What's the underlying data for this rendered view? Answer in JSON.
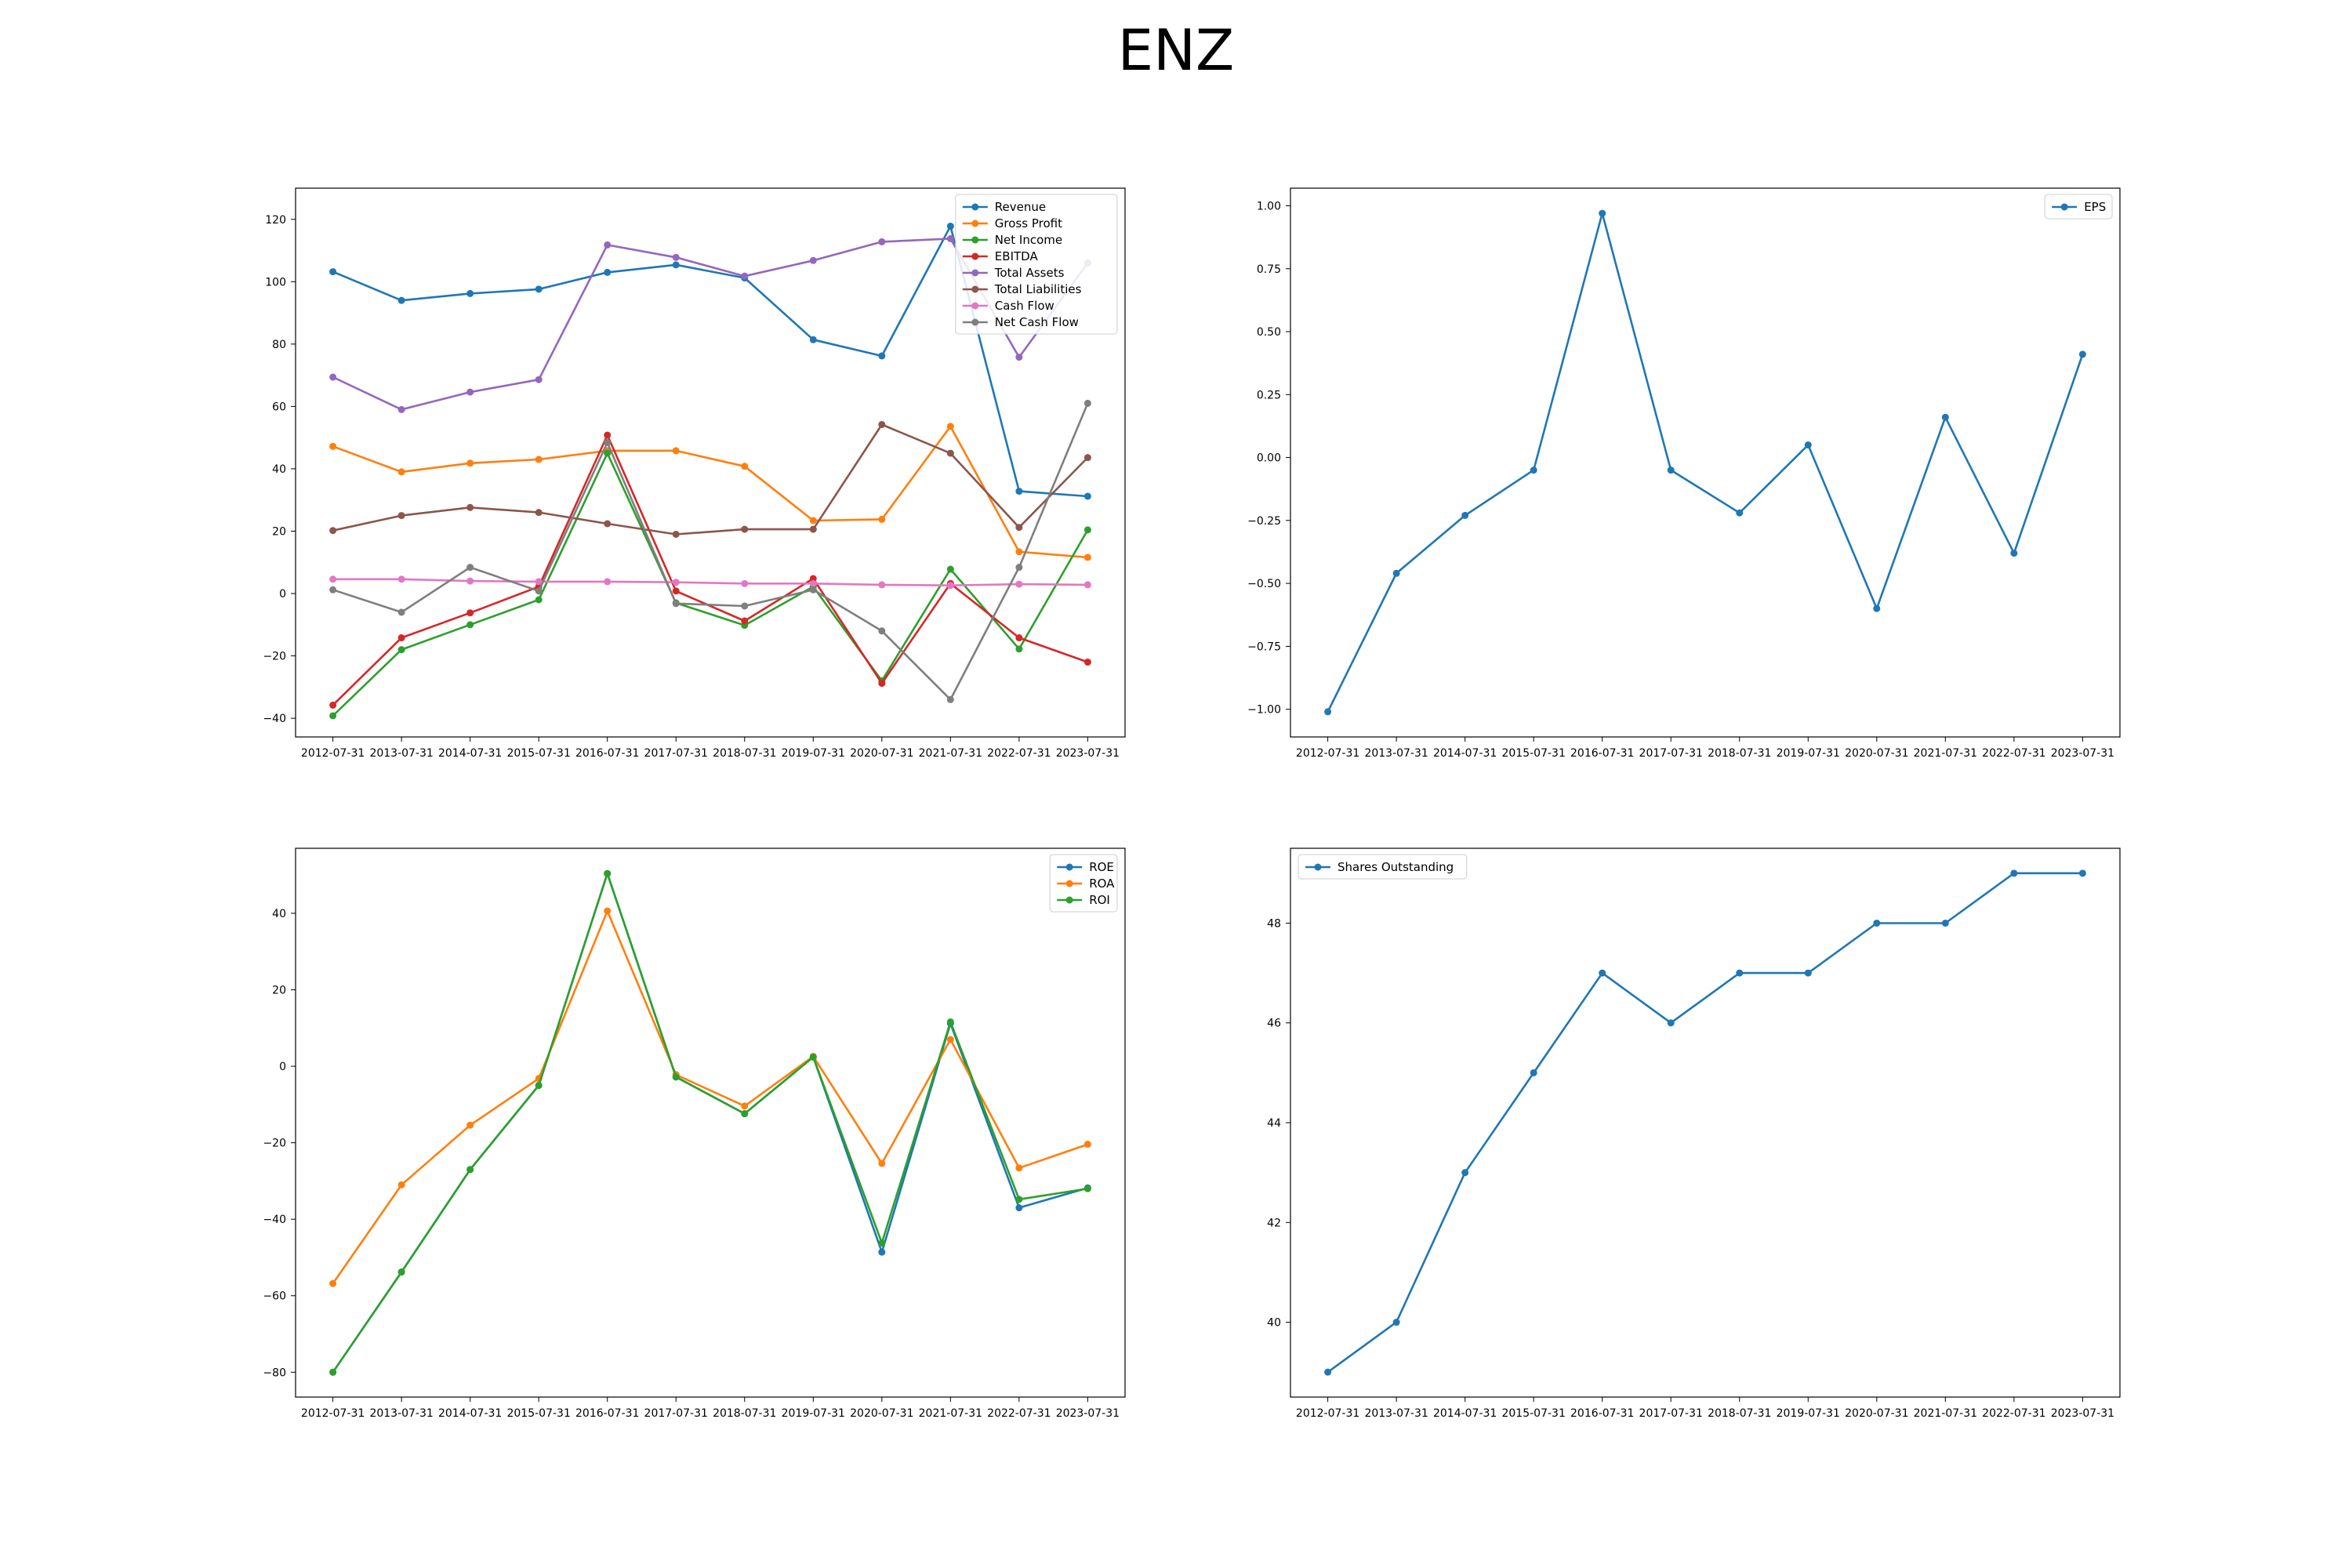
{
  "figure": {
    "title": "ENZ"
  },
  "chart_data": [
    {
      "type": "line",
      "x": [
        "2012-07-31",
        "2013-07-31",
        "2014-07-31",
        "2015-07-31",
        "2016-07-31",
        "2017-07-31",
        "2018-07-31",
        "2019-07-31",
        "2020-07-31",
        "2021-07-31",
        "2022-07-31",
        "2023-07-31"
      ],
      "ylim": [
        -46,
        130
      ],
      "yticks": [
        -40,
        -20,
        0,
        20,
        40,
        60,
        80,
        100,
        120
      ],
      "legend": "top-right",
      "grid": false,
      "series": [
        {
          "name": "Revenue",
          "color": "#1f77b4",
          "values": [
            103.2,
            94.0,
            96.2,
            97.6,
            103.0,
            105.4,
            101.2,
            81.4,
            76.2,
            117.8,
            32.8,
            31.2
          ]
        },
        {
          "name": "Gross Profit",
          "color": "#ff7f0e",
          "values": [
            47.2,
            39.0,
            41.8,
            43.0,
            45.8,
            45.8,
            40.8,
            23.4,
            23.8,
            53.6,
            13.4,
            11.6
          ]
        },
        {
          "name": "Net Income",
          "color": "#2ca02c",
          "values": [
            -39.2,
            -18.0,
            -10.0,
            -2.0,
            45.0,
            -3.0,
            -10.2,
            2.2,
            -28.0,
            7.8,
            -17.8,
            20.4
          ]
        },
        {
          "name": "EBITDA",
          "color": "#d62728",
          "values": [
            -35.8,
            -14.2,
            -6.2,
            2.2,
            50.8,
            0.8,
            -8.8,
            4.8,
            -28.8,
            3.2,
            -14.2,
            -22.0
          ]
        },
        {
          "name": "Total Assets",
          "color": "#9467bd",
          "values": [
            69.4,
            59.0,
            64.6,
            68.6,
            111.8,
            107.8,
            101.8,
            106.8,
            112.8,
            113.8,
            75.8,
            106.0
          ]
        },
        {
          "name": "Total Liabilities",
          "color": "#8c564b",
          "values": [
            20.2,
            25.0,
            27.6,
            26.0,
            22.4,
            19.0,
            20.6,
            20.6,
            54.2,
            45.0,
            21.2,
            43.6
          ]
        },
        {
          "name": "Cash Flow",
          "color": "#e377c2",
          "values": [
            4.6,
            4.6,
            4.0,
            3.8,
            3.8,
            3.6,
            3.2,
            3.2,
            2.8,
            2.6,
            3.0,
            2.8
          ]
        },
        {
          "name": "Net Cash Flow",
          "color": "#7f7f7f",
          "values": [
            1.2,
            -6.0,
            8.4,
            0.8,
            48.4,
            -3.2,
            -4.0,
            1.2,
            -12.0,
            -34.0,
            8.4,
            61.0
          ]
        }
      ]
    },
    {
      "type": "line",
      "x": [
        "2012-07-31",
        "2013-07-31",
        "2014-07-31",
        "2015-07-31",
        "2016-07-31",
        "2017-07-31",
        "2018-07-31",
        "2019-07-31",
        "2020-07-31",
        "2021-07-31",
        "2022-07-31",
        "2023-07-31"
      ],
      "ylim": [
        -1.11,
        1.07
      ],
      "yticks": [
        -1.0,
        -0.75,
        -0.5,
        -0.25,
        0.0,
        0.25,
        0.5,
        0.75,
        1.0
      ],
      "ytick_labels": [
        "−1.00",
        "−0.75",
        "−0.50",
        "−0.25",
        "0.00",
        "0.25",
        "0.50",
        "0.75",
        "1.00"
      ],
      "legend": "top-right",
      "grid": false,
      "series": [
        {
          "name": "EPS",
          "color": "#1f77b4",
          "values": [
            -1.01,
            -0.46,
            -0.23,
            -0.05,
            0.97,
            -0.05,
            -0.22,
            0.05,
            -0.6,
            0.16,
            -0.38,
            0.41
          ]
        }
      ]
    },
    {
      "type": "line",
      "x": [
        "2012-07-31",
        "2013-07-31",
        "2014-07-31",
        "2015-07-31",
        "2016-07-31",
        "2017-07-31",
        "2018-07-31",
        "2019-07-31",
        "2020-07-31",
        "2021-07-31",
        "2022-07-31",
        "2023-07-31"
      ],
      "ylim": [
        -86.5,
        57
      ],
      "yticks": [
        -80,
        -60,
        -40,
        -20,
        0,
        20,
        40
      ],
      "legend": "top-right",
      "grid": false,
      "series": [
        {
          "name": "ROE",
          "color": "#1f77b4",
          "values": [
            -80.0,
            -53.8,
            -27.0,
            -5.0,
            50.4,
            -2.8,
            -12.4,
            2.4,
            -48.6,
            11.2,
            -37.0,
            -31.8
          ]
        },
        {
          "name": "ROA",
          "color": "#ff7f0e",
          "values": [
            -56.8,
            -31.0,
            -15.4,
            -3.2,
            40.6,
            -2.2,
            -10.4,
            2.6,
            -25.4,
            7.0,
            -26.6,
            -20.4
          ]
        },
        {
          "name": "ROI",
          "color": "#2ca02c",
          "values": [
            -80.0,
            -53.8,
            -27.0,
            -5.0,
            50.4,
            -2.8,
            -12.4,
            2.4,
            -46.2,
            11.6,
            -34.8,
            -32.0
          ]
        }
      ]
    },
    {
      "type": "line",
      "x": [
        "2012-07-31",
        "2013-07-31",
        "2014-07-31",
        "2015-07-31",
        "2016-07-31",
        "2017-07-31",
        "2018-07-31",
        "2019-07-31",
        "2020-07-31",
        "2021-07-31",
        "2022-07-31",
        "2023-07-31"
      ],
      "ylim": [
        38.5,
        49.5
      ],
      "yticks": [
        40,
        42,
        44,
        46,
        48
      ],
      "legend": "top-left",
      "grid": false,
      "series": [
        {
          "name": "Shares Outstanding",
          "color": "#1f77b4",
          "values": [
            39,
            40,
            43,
            45,
            47,
            46,
            47,
            47,
            48,
            48,
            49,
            49
          ]
        }
      ]
    }
  ]
}
